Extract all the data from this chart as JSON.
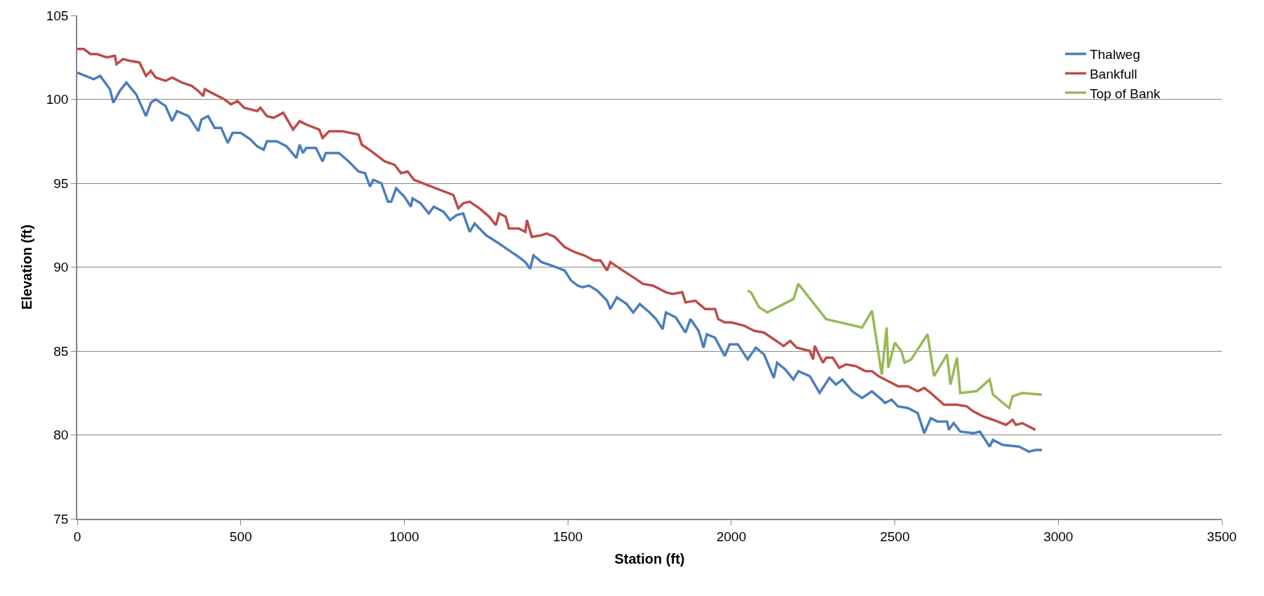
{
  "chart_data": {
    "type": "line",
    "xlabel": "Station (ft)",
    "ylabel": "Elevation (ft)",
    "xlim": [
      0,
      3500
    ],
    "xticks": [
      0,
      500,
      1000,
      1500,
      2000,
      2500,
      3000,
      3500
    ],
    "ylim": [
      75,
      105
    ],
    "yticks": [
      75,
      80,
      85,
      90,
      95,
      100,
      105
    ],
    "grid": "y",
    "legend": "top right",
    "marker": "none",
    "line_style": "solid",
    "series": [
      {
        "name": "Thalweg",
        "color": "#4a7ebb",
        "x": [
          0,
          50,
          70,
          100,
          110,
          130,
          150,
          180,
          210,
          225,
          240,
          270,
          290,
          305,
          340,
          370,
          380,
          400,
          420,
          440,
          460,
          475,
          500,
          530,
          550,
          570,
          580,
          610,
          640,
          670,
          680,
          690,
          700,
          730,
          750,
          760,
          800,
          830,
          860,
          880,
          895,
          905,
          930,
          950,
          960,
          975,
          1000,
          1020,
          1025,
          1050,
          1075,
          1090,
          1120,
          1140,
          1160,
          1180,
          1200,
          1215,
          1250,
          1290,
          1320,
          1350,
          1370,
          1385,
          1395,
          1420,
          1450,
          1490,
          1510,
          1530,
          1545,
          1565,
          1590,
          1620,
          1630,
          1650,
          1680,
          1700,
          1720,
          1750,
          1770,
          1790,
          1800,
          1830,
          1860,
          1875,
          1900,
          1915,
          1925,
          1950,
          1980,
          1995,
          2020,
          2050,
          2075,
          2100,
          2130,
          2140,
          2165,
          2190,
          2205,
          2240,
          2270,
          2300,
          2320,
          2340,
          2370,
          2400,
          2430,
          2460,
          2470,
          2490,
          2510,
          2540,
          2570,
          2590,
          2610,
          2630,
          2660,
          2665,
          2680,
          2700,
          2740,
          2760,
          2790,
          2800,
          2830,
          2880,
          2910,
          2930,
          2950
        ],
        "values": [
          101.6,
          101.2,
          101.4,
          100.6,
          99.8,
          100.5,
          101.0,
          100.3,
          99.0,
          99.8,
          100.0,
          99.6,
          98.7,
          99.3,
          99.0,
          98.1,
          98.8,
          99.0,
          98.3,
          98.3,
          97.4,
          98.0,
          98.0,
          97.6,
          97.2,
          97.0,
          97.5,
          97.5,
          97.2,
          96.5,
          97.3,
          96.8,
          97.1,
          97.1,
          96.3,
          96.8,
          96.8,
          96.3,
          95.7,
          95.6,
          94.8,
          95.2,
          95.0,
          93.9,
          93.9,
          94.7,
          94.2,
          93.6,
          94.1,
          93.8,
          93.2,
          93.6,
          93.3,
          92.8,
          93.1,
          93.2,
          92.1,
          92.6,
          91.9,
          91.4,
          91.0,
          90.6,
          90.3,
          89.9,
          90.7,
          90.3,
          90.1,
          89.8,
          89.2,
          88.9,
          88.8,
          88.9,
          88.6,
          88.0,
          87.5,
          88.2,
          87.8,
          87.3,
          87.8,
          87.3,
          86.9,
          86.3,
          87.3,
          87.0,
          86.1,
          86.9,
          86.2,
          85.2,
          86.0,
          85.8,
          84.7,
          85.4,
          85.4,
          84.5,
          85.2,
          84.8,
          83.4,
          84.3,
          83.9,
          83.3,
          83.8,
          83.5,
          82.5,
          83.4,
          83.0,
          83.3,
          82.6,
          82.2,
          82.6,
          82.1,
          81.9,
          82.1,
          81.7,
          81.6,
          81.3,
          80.1,
          81.0,
          80.8,
          80.8,
          80.3,
          80.7,
          80.2,
          80.1,
          80.2,
          79.3,
          79.7,
          79.4,
          79.3,
          79.0,
          79.1,
          79.1
        ]
      },
      {
        "name": "Bankfull",
        "color": "#be4b48",
        "x": [
          0,
          20,
          40,
          60,
          90,
          115,
          120,
          140,
          160,
          190,
          210,
          225,
          240,
          270,
          290,
          320,
          350,
          370,
          385,
          390,
          420,
          450,
          470,
          490,
          510,
          550,
          560,
          580,
          600,
          630,
          660,
          680,
          700,
          740,
          750,
          770,
          810,
          860,
          870,
          900,
          940,
          970,
          990,
          1010,
          1030,
          1070,
          1110,
          1150,
          1165,
          1180,
          1200,
          1230,
          1260,
          1280,
          1290,
          1310,
          1320,
          1350,
          1370,
          1375,
          1390,
          1420,
          1435,
          1460,
          1490,
          1520,
          1550,
          1580,
          1600,
          1620,
          1630,
          1660,
          1700,
          1730,
          1760,
          1800,
          1820,
          1850,
          1860,
          1890,
          1920,
          1950,
          1960,
          1980,
          2000,
          2040,
          2070,
          2100,
          2130,
          2160,
          2180,
          2200,
          2240,
          2250,
          2255,
          2270,
          2280,
          2290,
          2310,
          2330,
          2350,
          2380,
          2410,
          2430,
          2450,
          2480,
          2510,
          2540,
          2570,
          2590,
          2610,
          2650,
          2690,
          2720,
          2740,
          2770,
          2800,
          2840,
          2860,
          2870,
          2890,
          2930
        ],
        "values": [
          103.0,
          103.0,
          102.7,
          102.7,
          102.5,
          102.6,
          102.1,
          102.4,
          102.3,
          102.2,
          101.4,
          101.7,
          101.3,
          101.1,
          101.3,
          101.0,
          100.8,
          100.5,
          100.2,
          100.6,
          100.3,
          100.0,
          99.7,
          99.9,
          99.5,
          99.3,
          99.5,
          99.0,
          98.9,
          99.2,
          98.2,
          98.7,
          98.5,
          98.2,
          97.7,
          98.1,
          98.1,
          97.9,
          97.3,
          96.9,
          96.3,
          96.1,
          95.6,
          95.7,
          95.2,
          94.9,
          94.6,
          94.3,
          93.5,
          93.8,
          93.9,
          93.5,
          93.0,
          92.5,
          93.2,
          93.0,
          92.3,
          92.3,
          92.1,
          92.8,
          91.8,
          91.9,
          92.0,
          91.8,
          91.2,
          90.9,
          90.7,
          90.4,
          90.4,
          89.8,
          90.3,
          89.9,
          89.4,
          89.0,
          88.9,
          88.5,
          88.4,
          88.5,
          87.9,
          88.0,
          87.5,
          87.5,
          86.9,
          86.7,
          86.7,
          86.5,
          86.2,
          86.1,
          85.7,
          85.3,
          85.6,
          85.2,
          85.0,
          84.5,
          85.3,
          84.7,
          84.3,
          84.6,
          84.6,
          84.0,
          84.2,
          84.1,
          83.8,
          83.8,
          83.5,
          83.2,
          82.9,
          82.9,
          82.6,
          82.8,
          82.5,
          81.8,
          81.8,
          81.7,
          81.4,
          81.1,
          80.9,
          80.6,
          80.9,
          80.6,
          80.7,
          80.3
        ]
      },
      {
        "name": "Top of Bank",
        "color": "#98b954",
        "x": [
          2050,
          2060,
          2085,
          2110,
          2160,
          2190,
          2205,
          2290,
          2400,
          2430,
          2460,
          2475,
          2480,
          2500,
          2520,
          2530,
          2550,
          2600,
          2620,
          2660,
          2670,
          2690,
          2700,
          2750,
          2790,
          2800,
          2850,
          2860,
          2890,
          2950
        ],
        "values": [
          88.6,
          88.5,
          87.6,
          87.3,
          87.8,
          88.1,
          89.0,
          86.9,
          86.4,
          87.4,
          83.6,
          86.4,
          84.0,
          85.5,
          85.0,
          84.3,
          84.5,
          86.0,
          83.5,
          84.8,
          83.0,
          84.6,
          82.5,
          82.6,
          83.3,
          82.4,
          81.6,
          82.3,
          82.5,
          82.4
        ]
      }
    ]
  }
}
